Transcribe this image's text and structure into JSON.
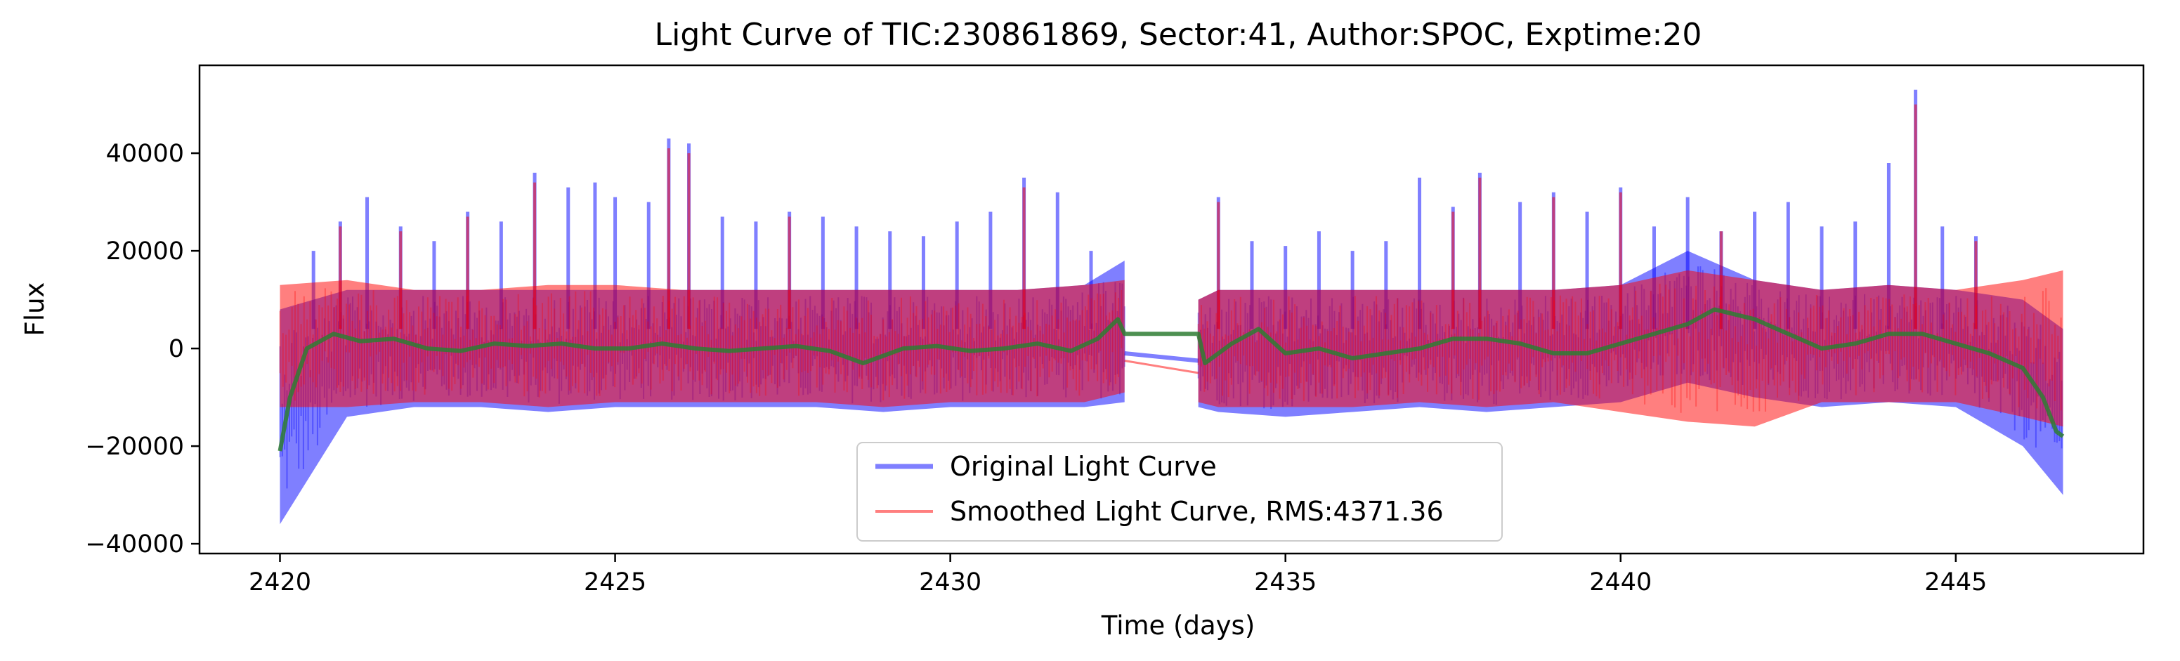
{
  "chart_data": {
    "type": "line",
    "title": "Light Curve of TIC:230861869, Sector:41, Author:SPOC, Exptime:20",
    "xlabel": "Time (days)",
    "ylabel": "Flux",
    "xlim": [
      2418.8,
      2447.8
    ],
    "ylim": [
      -42000,
      58000
    ],
    "x_ticks": [
      2420,
      2425,
      2430,
      2435,
      2440,
      2445
    ],
    "y_ticks": [
      -40000,
      -20000,
      0,
      20000,
      40000
    ],
    "x_tick_labels": [
      "2420",
      "2425",
      "2430",
      "2435",
      "2440",
      "2445"
    ],
    "y_tick_labels": [
      "−40000",
      "−20000",
      "0",
      "20000",
      "40000"
    ],
    "grid": false,
    "legend_position": "bottom-center",
    "gap": [
      2432.6,
      2433.7
    ],
    "series": [
      {
        "name": "Original Light Curve",
        "color": "#0000ff",
        "style": "dense noisy band, roughly -12000 to 12000 with spikes",
        "band_segment_1": {
          "x": [
            2420.0,
            2421.0,
            2422.0,
            2423.0,
            2424.0,
            2425.0,
            2426.0,
            2427.0,
            2428.0,
            2429.0,
            2430.0,
            2431.0,
            2432.0,
            2432.6
          ],
          "lower": [
            -36000,
            -14000,
            -12000,
            -12000,
            -13000,
            -12000,
            -12000,
            -12000,
            -12000,
            -13000,
            -12000,
            -12000,
            -12000,
            -11000
          ],
          "upper": [
            8000,
            12000,
            12000,
            12000,
            12000,
            12000,
            12000,
            12000,
            12000,
            12000,
            12000,
            12000,
            13000,
            18000
          ]
        },
        "band_segment_2": {
          "x": [
            2433.7,
            2434.0,
            2435.0,
            2436.0,
            2437.0,
            2438.0,
            2439.0,
            2440.0,
            2441.0,
            2442.0,
            2443.0,
            2444.0,
            2445.0,
            2446.0,
            2446.6
          ],
          "lower": [
            -12000,
            -13000,
            -14000,
            -13000,
            -12000,
            -13000,
            -12000,
            -11000,
            -7000,
            -10000,
            -12000,
            -11000,
            -12000,
            -20000,
            -30000
          ],
          "upper": [
            10000,
            12000,
            12000,
            12000,
            12000,
            12000,
            12000,
            13000,
            20000,
            14000,
            12000,
            13000,
            12000,
            10000,
            4000
          ]
        },
        "gap_line": {
          "x": [
            2432.6,
            2433.7
          ],
          "y": [
            -1000,
            -2500
          ]
        },
        "spikes": {
          "x": [
            2420.5,
            2420.9,
            2421.3,
            2421.8,
            2422.3,
            2422.8,
            2423.3,
            2423.8,
            2424.3,
            2424.7,
            2425.0,
            2425.5,
            2425.8,
            2426.1,
            2426.6,
            2427.1,
            2427.6,
            2428.1,
            2428.6,
            2429.1,
            2429.6,
            2430.1,
            2430.6,
            2431.1,
            2431.6,
            2432.1,
            2434.0,
            2434.5,
            2435.0,
            2435.5,
            2436.0,
            2436.5,
            2437.0,
            2437.5,
            2437.9,
            2438.5,
            2439.0,
            2439.5,
            2440.0,
            2440.5,
            2441.0,
            2441.5,
            2442.0,
            2442.5,
            2443.0,
            2443.5,
            2444.0,
            2444.4,
            2444.8,
            2445.3
          ],
          "y": [
            20000,
            26000,
            31000,
            25000,
            22000,
            28000,
            26000,
            36000,
            33000,
            34000,
            31000,
            30000,
            43000,
            42000,
            27000,
            26000,
            28000,
            27000,
            25000,
            24000,
            23000,
            26000,
            28000,
            35000,
            32000,
            20000,
            31000,
            22000,
            21000,
            24000,
            20000,
            22000,
            35000,
            29000,
            36000,
            30000,
            32000,
            28000,
            33000,
            25000,
            31000,
            24000,
            28000,
            30000,
            25000,
            26000,
            38000,
            53000,
            25000,
            23000
          ]
        }
      },
      {
        "name": "Smoothed Light Curve, RMS:4371.36",
        "color": "#ff0000",
        "style": "dense noisy band overlaid on original, slightly narrower",
        "band_segment_1": {
          "x": [
            2420.0,
            2421.0,
            2422.0,
            2423.0,
            2424.0,
            2425.0,
            2426.0,
            2427.0,
            2428.0,
            2429.0,
            2430.0,
            2431.0,
            2432.0,
            2432.6
          ],
          "lower": [
            -12000,
            -12000,
            -11000,
            -11000,
            -12000,
            -11000,
            -11000,
            -11000,
            -11000,
            -12000,
            -11000,
            -11000,
            -11000,
            -9000
          ],
          "upper": [
            13000,
            14000,
            12000,
            12000,
            13000,
            13000,
            12000,
            12000,
            12000,
            12000,
            12000,
            12000,
            13000,
            14000
          ]
        },
        "band_segment_2": {
          "x": [
            2433.7,
            2434.0,
            2435.0,
            2436.0,
            2437.0,
            2438.0,
            2439.0,
            2440.0,
            2441.0,
            2442.0,
            2443.0,
            2444.0,
            2445.0,
            2446.0,
            2446.6
          ],
          "lower": [
            -11000,
            -12000,
            -12000,
            -12000,
            -11000,
            -12000,
            -11000,
            -13000,
            -15000,
            -16000,
            -11000,
            -11000,
            -11000,
            -14000,
            -16000
          ],
          "upper": [
            10000,
            12000,
            12000,
            12000,
            12000,
            12000,
            12000,
            13000,
            16000,
            14000,
            12000,
            13000,
            12000,
            14000,
            16000
          ]
        },
        "gap_line": {
          "x": [
            2432.6,
            2433.7
          ],
          "y": [
            -2500,
            -5000
          ]
        },
        "spikes": {
          "x": [
            2420.9,
            2421.8,
            2422.8,
            2423.8,
            2425.8,
            2426.1,
            2427.6,
            2431.1,
            2434.0,
            2437.5,
            2437.9,
            2439.0,
            2440.0,
            2441.5,
            2444.4,
            2445.3
          ],
          "y": [
            25000,
            24000,
            27000,
            34000,
            41000,
            40000,
            27000,
            33000,
            30000,
            28000,
            35000,
            31000,
            32000,
            24000,
            50000,
            22000
          ]
        }
      },
      {
        "name": "",
        "color": "#2e7d32",
        "style": "smooth trend line",
        "x": [
          2420.0,
          2420.15,
          2420.4,
          2420.8,
          2421.2,
          2421.7,
          2422.2,
          2422.7,
          2423.2,
          2423.7,
          2424.2,
          2424.7,
          2425.2,
          2425.7,
          2426.2,
          2426.7,
          2427.2,
          2427.7,
          2428.2,
          2428.7,
          2428.9,
          2429.3,
          2429.8,
          2430.3,
          2430.8,
          2431.3,
          2431.8,
          2432.2,
          2432.5,
          2432.6,
          2433.7,
          2433.8,
          2434.2,
          2434.6,
          2435.0,
          2435.5,
          2436.0,
          2436.5,
          2437.0,
          2437.5,
          2438.0,
          2438.5,
          2439.0,
          2439.5,
          2440.0,
          2440.5,
          2441.0,
          2441.4,
          2441.7,
          2442.0,
          2442.5,
          2443.0,
          2443.5,
          2444.0,
          2444.5,
          2445.0,
          2445.5,
          2446.0,
          2446.3,
          2446.5,
          2446.6
        ],
        "y": [
          -21000,
          -10000,
          0,
          3000,
          1500,
          2000,
          0,
          -500,
          1000,
          500,
          1000,
          0,
          0,
          1000,
          0,
          -500,
          0,
          500,
          -500,
          -3000,
          -2000,
          0,
          500,
          -500,
          0,
          1000,
          -500,
          2000,
          6000,
          3000,
          3000,
          -3000,
          1000,
          4000,
          -1000,
          0,
          -2000,
          -1000,
          0,
          2000,
          2000,
          1000,
          -1000,
          -1000,
          1000,
          3000,
          5000,
          8000,
          7000,
          6000,
          3000,
          0,
          1000,
          3000,
          3000,
          1000,
          -1000,
          -4000,
          -10000,
          -17000,
          -18000
        ]
      }
    ]
  }
}
